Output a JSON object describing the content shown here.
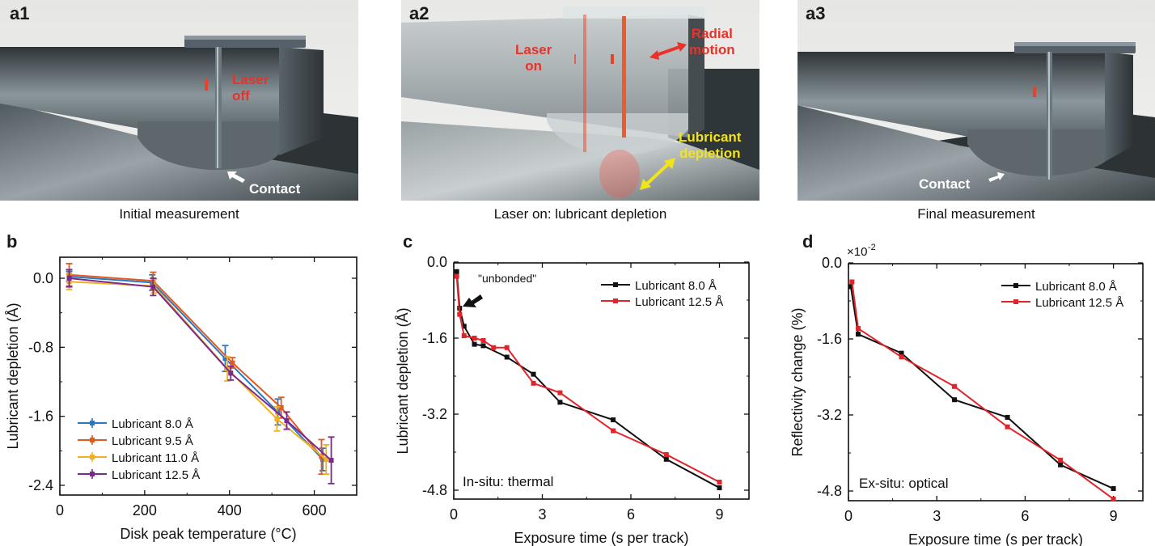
{
  "panels": {
    "a1": {
      "label": "a1",
      "caption": "Initial measurement",
      "overlay_laser": "Laser\noff",
      "overlay_contact": "Contact"
    },
    "a2": {
      "label": "a2",
      "caption": "Laser on: lubricant depletion",
      "overlay_laser": "Laser\non",
      "overlay_radial": "Radial\nmotion",
      "overlay_lube": "Lubricant\ndepletion"
    },
    "a3": {
      "label": "a3",
      "caption": "Final measurement",
      "overlay_contact": "Contact"
    }
  },
  "colors": {
    "laser_red": "#e8322a",
    "lube_yellow": "#f2e31b",
    "series_blue": "#2878c3",
    "series_orange": "#e05a21",
    "series_yellow": "#f0b023",
    "series_purple": "#7a2a8c",
    "black": "#111111",
    "red": "#e3232a"
  },
  "chart_data": [
    {
      "panel": "b",
      "type": "line",
      "title": "",
      "xlabel": "Disk peak temperature (°C)",
      "ylabel": "Lubricant depletion (Å)",
      "xlim": [
        0,
        700
      ],
      "ylim": [
        -2.5,
        0.2
      ],
      "xticks": [
        0,
        200,
        400,
        600
      ],
      "xtick_labels": [
        "0",
        "200",
        "400",
        "600"
      ],
      "yticks": [
        0.0,
        -0.8,
        -1.6,
        -2.4
      ],
      "ytick_labels": [
        "0.0",
        "-0.8",
        "-1.6",
        "-2.4"
      ],
      "legend_position": "bottom-left",
      "error_bars": true,
      "series": [
        {
          "name": "Lubricant 8.0 Å",
          "color_key": "series_blue",
          "x": [
            22,
            218,
            390,
            514,
            620
          ],
          "y": [
            0.02,
            -0.05,
            -0.93,
            -1.55,
            -2.1
          ],
          "err": [
            0.06,
            0.09,
            0.15,
            0.15,
            0.13
          ]
        },
        {
          "name": "Lubricant 9.5 Å",
          "color_key": "series_orange",
          "x": [
            22,
            220,
            407,
            522,
            617
          ],
          "y": [
            0.04,
            -0.03,
            -0.98,
            -1.5,
            -2.07
          ],
          "err": [
            0.13,
            0.1,
            0.06,
            0.12,
            0.2
          ]
        },
        {
          "name": "Lubricant 11.0 Å",
          "color_key": "series_yellow",
          "x": [
            22,
            222,
            395,
            512,
            628
          ],
          "y": [
            -0.04,
            -0.09,
            -1.05,
            -1.63,
            -2.1
          ],
          "err": [
            0.09,
            0.08,
            0.14,
            0.14,
            0.17
          ]
        },
        {
          "name": "Lubricant 12.5 Å",
          "color_key": "series_purple",
          "x": [
            22,
            220,
            403,
            535,
            640
          ],
          "y": [
            0.0,
            -0.1,
            -1.1,
            -1.65,
            -2.11
          ],
          "err": [
            0.1,
            0.1,
            0.08,
            0.1,
            0.27
          ]
        }
      ]
    },
    {
      "panel": "c",
      "type": "line",
      "title": "",
      "xlabel": "Exposure time (s per track)",
      "ylabel": "Lubricant depletion (Å)",
      "xlim": [
        0,
        10
      ],
      "ylim": [
        -5.0,
        0.0
      ],
      "xticks": [
        0,
        3,
        6,
        9
      ],
      "xtick_labels": [
        "0",
        "3",
        "6",
        "9"
      ],
      "yticks": [
        0.0,
        -1.6,
        -3.2,
        -4.8
      ],
      "ytick_labels": [
        "0.0",
        "-1.6",
        "-3.2",
        "-4.8"
      ],
      "legend_position": "top-right",
      "annotations": [
        "\"unbonded\"",
        "In-situ: thermal"
      ],
      "series": [
        {
          "name": "Lubricant 8.0 Å",
          "color_key": "black",
          "x": [
            0.1,
            0.2,
            0.35,
            0.7,
            1.0,
            1.8,
            2.7,
            3.6,
            5.4,
            7.2,
            9.0
          ],
          "y": [
            -0.2,
            -0.97,
            -1.35,
            -1.73,
            -1.76,
            -2.0,
            -2.36,
            -2.95,
            -3.32,
            -4.15,
            -4.75
          ]
        },
        {
          "name": "Lubricant 12.5 Å",
          "color_key": "red",
          "x": [
            0.1,
            0.2,
            0.35,
            0.7,
            1.0,
            1.35,
            1.8,
            2.7,
            3.6,
            5.4,
            7.2,
            9.0
          ],
          "y": [
            -0.3,
            -1.1,
            -1.55,
            -1.6,
            -1.65,
            -1.8,
            -1.8,
            -2.55,
            -2.75,
            -3.55,
            -4.05,
            -4.63
          ]
        }
      ]
    },
    {
      "panel": "d",
      "type": "line",
      "title": "",
      "xlabel": "Exposure time (s per track)",
      "ylabel": "Reflectivity change (%)",
      "y_scale_note": "×10",
      "y_scale_exp": "-2",
      "xlim": [
        0,
        10
      ],
      "ylim": [
        -5.0,
        0.0
      ],
      "xticks": [
        0,
        3,
        6,
        9
      ],
      "xtick_labels": [
        "0",
        "3",
        "6",
        "9"
      ],
      "yticks": [
        0.0,
        -1.6,
        -3.2,
        -4.8
      ],
      "ytick_labels": [
        "0.0",
        "-1.6",
        "-3.2",
        "-4.8"
      ],
      "legend_position": "top-right",
      "annotations": [
        "Ex-situ: optical"
      ],
      "series": [
        {
          "name": "Lubricant 8.0 Å",
          "color_key": "black",
          "x": [
            0.08,
            0.33,
            1.8,
            3.6,
            5.4,
            7.2,
            9.0
          ],
          "y": [
            -0.5,
            -1.5,
            -1.9,
            -2.88,
            -3.25,
            -4.25,
            -4.75
          ]
        },
        {
          "name": "Lubricant 12.5 Å",
          "color_key": "red",
          "x": [
            0.12,
            0.33,
            1.8,
            3.6,
            5.4,
            7.2,
            9.0
          ],
          "y": [
            -0.4,
            -1.38,
            -1.98,
            -2.6,
            -3.45,
            -4.15,
            -4.97
          ]
        }
      ]
    }
  ]
}
